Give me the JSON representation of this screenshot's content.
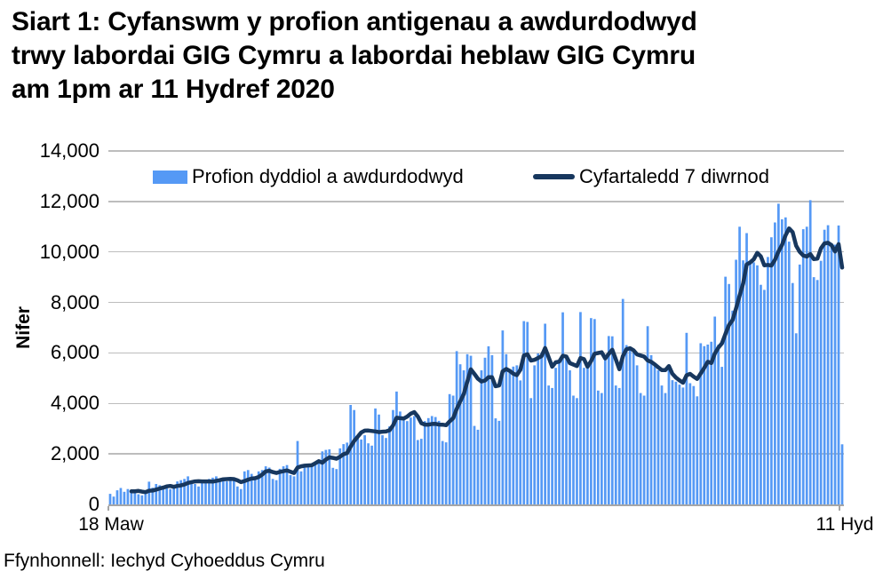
{
  "page": {
    "title_lines": [
      "Siart 1: Cyfanswm y profion antigenau a awdurdodwyd",
      "trwy labordai GIG Cymru a labordai heblaw GIG Cymru",
      "am 1pm ar 11 Hydref 2020"
    ],
    "source": "Ffynhonnell: Iechyd Cyhoeddus Cymru"
  },
  "colors": {
    "bar": "#5599F5",
    "line": "#17375E",
    "gridline": "#BDBDBD",
    "axis": "#A6A6A6",
    "text": "#000000",
    "background": "#FFFFFF"
  },
  "chart_data": {
    "type": "bar",
    "title": "Siart 1: Cyfanswm y profion antigenau a awdurdodwyd trwy labordai GIG Cymru a labordai heblaw GIG Cymru am 1pm ar 11 Hydref 2020",
    "xlabel": "",
    "ylabel": "Nifer",
    "ylim": [
      0,
      14000
    ],
    "grid": "horizontal",
    "legend_position": "top-inside",
    "x_first_tick_label": "18 Maw",
    "x_last_tick_label": "11 Hyd",
    "y_ticks": [
      {
        "value": 0,
        "label": "0"
      },
      {
        "value": 2000,
        "label": "2,000"
      },
      {
        "value": 4000,
        "label": "4,000"
      },
      {
        "value": 6000,
        "label": "6,000"
      },
      {
        "value": 8000,
        "label": "8,000"
      },
      {
        "value": 10000,
        "label": "10,000"
      },
      {
        "value": 12000,
        "label": "12,000"
      },
      {
        "value": 14000,
        "label": "14,000"
      }
    ],
    "series": [
      {
        "name": "Profion dyddiol a awdurdodwyd",
        "type": "bar",
        "color": "#5599F5",
        "values": [
          420,
          310,
          560,
          650,
          500,
          610,
          560,
          460,
          400,
          360,
          510,
          900,
          660,
          810,
          760,
          660,
          710,
          610,
          660,
          910,
          960,
          1010,
          1110,
          910,
          810,
          710,
          860,
          960,
          1010,
          1060,
          1110,
          1010,
          960,
          910,
          1010,
          960,
          710,
          610,
          1310,
          1360,
          1210,
          1110,
          1310,
          1360,
          1510,
          1460,
          1010,
          960,
          1410,
          1510,
          1560,
          1160,
          1110,
          2510,
          1310,
          1570,
          1590,
          1610,
          1690,
          1710,
          2100,
          2160,
          2180,
          1450,
          1400,
          2220,
          2390,
          2450,
          3940,
          3740,
          2630,
          2570,
          2740,
          2420,
          2330,
          3800,
          3560,
          2740,
          2630,
          3090,
          3740,
          4470,
          3680,
          3450,
          3300,
          3440,
          3500,
          2550,
          2600,
          3300,
          3420,
          3500,
          3460,
          3310,
          2510,
          2460,
          4370,
          4310,
          6070,
          5550,
          5310,
          5950,
          5890,
          3110,
          2960,
          5310,
          5810,
          6260,
          5910,
          3410,
          3310,
          6890,
          5950,
          5310,
          5460,
          5510,
          4910,
          7260,
          7230,
          4210,
          5510,
          5980,
          6010,
          7160,
          4710,
          4610,
          5410,
          5710,
          7610,
          5810,
          5310,
          4310,
          4210,
          7620,
          5410,
          5510,
          7380,
          7340,
          4510,
          4410,
          5910,
          6670,
          6660,
          4710,
          4610,
          8140,
          6310,
          6210,
          6110,
          5510,
          4410,
          4310,
          7060,
          5910,
          5510,
          5310,
          4710,
          4410,
          5450,
          4920,
          4860,
          4745,
          4630,
          6795,
          4800,
          4690,
          4280,
          6385,
          6270,
          6330,
          6445,
          7440,
          6330,
          5450,
          9020,
          8730,
          7675,
          9690,
          11000,
          9665,
          10745,
          9605,
          9590,
          9470,
          8700,
          8500,
          9800,
          10580,
          11170,
          11910,
          11290,
          11370,
          10410,
          8770,
          6780,
          9500,
          10900,
          11000,
          12050,
          9000,
          8890,
          9650,
          10880,
          11060,
          10350,
          10290,
          11050,
          2380
        ]
      },
      {
        "name": "Cyfartaledd 7 diwrnod",
        "type": "line",
        "color": "#17375E",
        "derivation": "trailing 7-day mean of the daily bar series, drawn from the 7th day onward"
      }
    ]
  }
}
